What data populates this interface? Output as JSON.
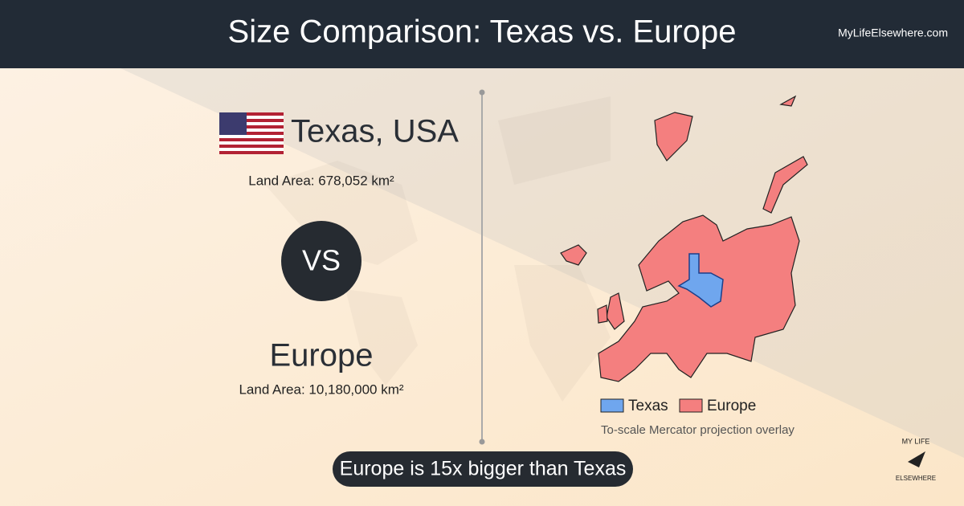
{
  "header": {
    "title": "Size Comparison: Texas vs. Europe",
    "site": "MyLifeElsewhere.com"
  },
  "left": {
    "place1": {
      "name": "Texas, USA",
      "area": "Land Area: 678,052 km²"
    },
    "vs": "VS",
    "place2": {
      "name": "Europe",
      "area": "Land Area: 10,180,000 km²"
    }
  },
  "map": {
    "legend": [
      {
        "label": "Texas",
        "color": "#6fa6ee"
      },
      {
        "label": "Europe",
        "color": "#f47f7f"
      }
    ],
    "note": "To-scale Mercator projection overlay"
  },
  "banner": "Europe is 15x bigger than Texas",
  "logo": [
    "MY LIFE",
    "ELSEWHERE"
  ]
}
